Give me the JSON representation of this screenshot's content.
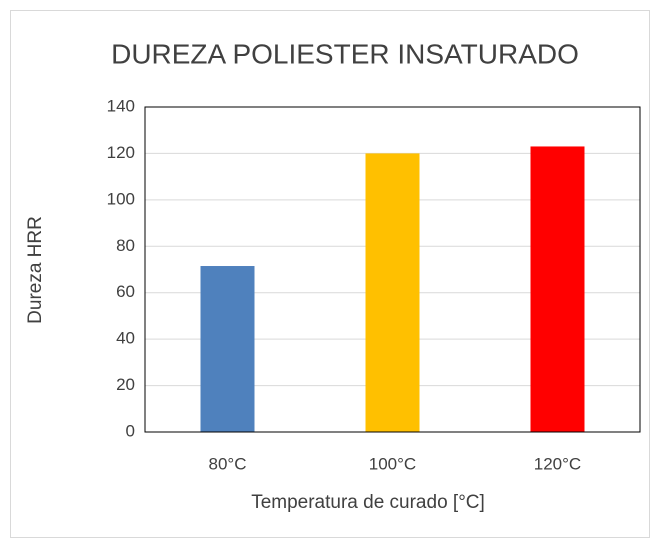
{
  "chart_data": {
    "type": "bar",
    "title": "DUREZA POLIESTER INSATURADO",
    "x_label": "Temperatura de curado [°C]",
    "y_label": "Dureza HRR",
    "categories": [
      "80°C",
      "100°C",
      "120°C"
    ],
    "values": [
      71.5,
      120,
      123
    ],
    "colors": [
      "#4f81bd",
      "#ffc000",
      "#ff0000"
    ],
    "ylim": [
      0,
      140
    ],
    "yticks": [
      0,
      20,
      40,
      60,
      80,
      100,
      120,
      140
    ],
    "grid": true
  }
}
